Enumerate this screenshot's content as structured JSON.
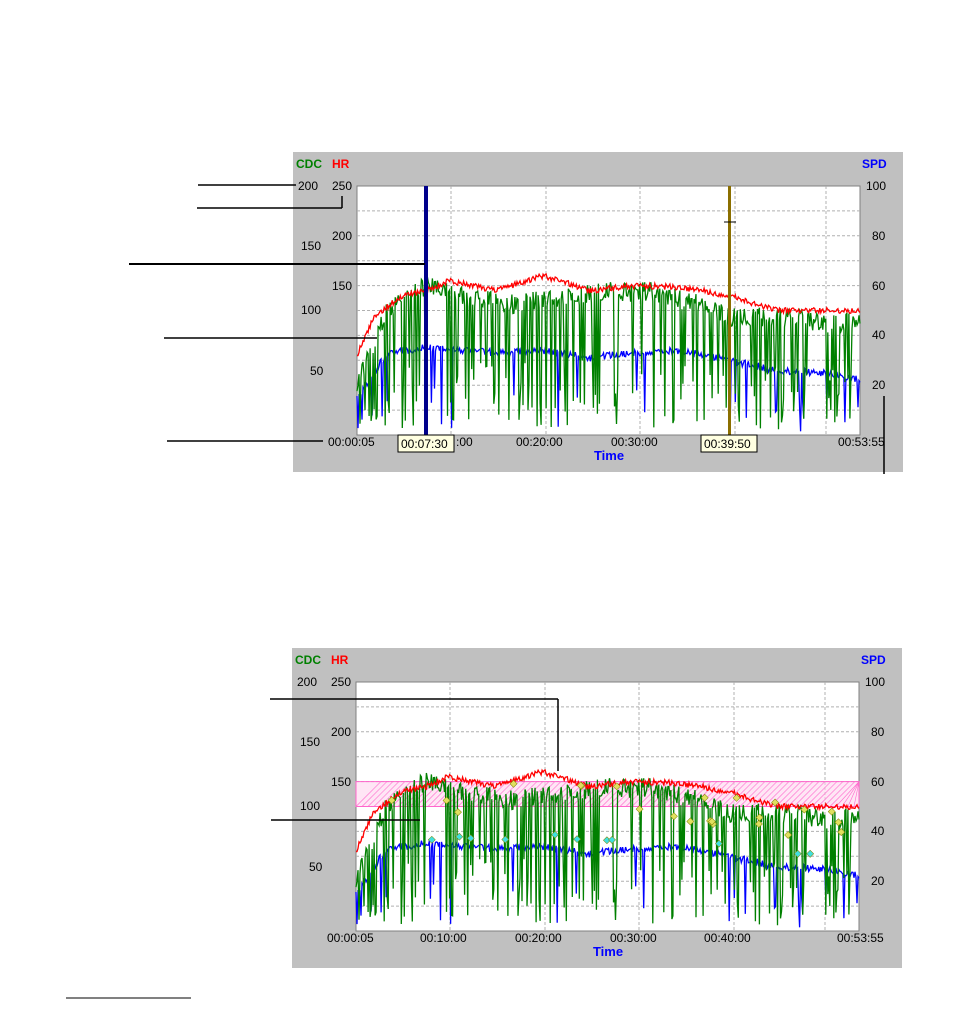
{
  "colors": {
    "cdc": "#008000",
    "hr": "#ff0000",
    "spd": "#0000ff",
    "panel": "#c0c0c0",
    "cursor1": "#00008b",
    "cursor2": "#8b6f00",
    "band": "#ff66cc",
    "marker": "#e0e060"
  },
  "chart_data": [
    {
      "type": "line",
      "title": "",
      "xlabel": "Time",
      "y_left_labels": [
        "CDC",
        "HR"
      ],
      "y_right_label": "SPD",
      "x_range_seconds": [
        5,
        3235
      ],
      "x_ticks": [
        "00:00:05",
        "00:20:00",
        "00:30:00",
        "00:53:55"
      ],
      "y_left_cdc_ticks": [
        "200",
        "150",
        "100",
        "50"
      ],
      "y_left_hr_ticks": [
        "250",
        "200",
        "150"
      ],
      "y_right_ticks": [
        "100",
        "80",
        "60",
        "40",
        "20"
      ],
      "cursors": [
        {
          "label": "00:07:30",
          "time_s": 450
        },
        {
          "label": "00:39:50",
          "time_s": 2390
        }
      ],
      "partial_tick": ":00",
      "series": [
        {
          "name": "HR",
          "axis": "HR",
          "points": [
            [
              5,
              80
            ],
            [
              120,
              120
            ],
            [
              300,
              140
            ],
            [
              450,
              145
            ],
            [
              600,
              155
            ],
            [
              900,
              145
            ],
            [
              1200,
              160
            ],
            [
              1500,
              145
            ],
            [
              1800,
              150
            ],
            [
              2100,
              148
            ],
            [
              2390,
              140
            ],
            [
              2700,
              125
            ],
            [
              3000,
              125
            ],
            [
              3235,
              125
            ]
          ]
        },
        {
          "name": "CDC",
          "axis": "CDC",
          "points": [
            [
              5,
              40
            ],
            [
              200,
              100
            ],
            [
              450,
              120
            ],
            [
              700,
              110
            ],
            [
              1000,
              105
            ],
            [
              1300,
              110
            ],
            [
              1600,
              115
            ],
            [
              1900,
              115
            ],
            [
              2200,
              105
            ],
            [
              2390,
              95
            ],
            [
              2700,
              95
            ],
            [
              3000,
              90
            ],
            [
              3235,
              90
            ]
          ]
        },
        {
          "name": "SPD",
          "axis": "SPD",
          "points": [
            [
              5,
              15
            ],
            [
              200,
              33
            ],
            [
              450,
              35
            ],
            [
              700,
              34
            ],
            [
              900,
              33
            ],
            [
              1200,
              34
            ],
            [
              1500,
              31
            ],
            [
              1800,
              33
            ],
            [
              2100,
              34
            ],
            [
              2390,
              30
            ],
            [
              2700,
              26
            ],
            [
              3000,
              25
            ],
            [
              3235,
              22
            ]
          ]
        }
      ]
    },
    {
      "type": "line",
      "title": "",
      "xlabel": "Time",
      "y_left_labels": [
        "CDC",
        "HR"
      ],
      "y_right_label": "SPD",
      "x_range_seconds": [
        5,
        3235
      ],
      "x_ticks": [
        "00:00:05",
        "00:10:00",
        "00:20:00",
        "00:30:00",
        "00:40:00",
        "00:53:55"
      ],
      "y_left_cdc_ticks": [
        "200",
        "150",
        "100",
        "50"
      ],
      "y_left_hr_ticks": [
        "250",
        "200",
        "150"
      ],
      "y_right_ticks": [
        "100",
        "80",
        "60",
        "40",
        "20"
      ],
      "band_cdc": [
        100,
        120
      ],
      "series": [
        {
          "name": "HR",
          "axis": "HR",
          "points": [
            [
              5,
              80
            ],
            [
              120,
              120
            ],
            [
              300,
              140
            ],
            [
              450,
              145
            ],
            [
              600,
              155
            ],
            [
              900,
              145
            ],
            [
              1200,
              160
            ],
            [
              1500,
              145
            ],
            [
              1800,
              150
            ],
            [
              2100,
              148
            ],
            [
              2390,
              140
            ],
            [
              2700,
              125
            ],
            [
              3000,
              125
            ],
            [
              3235,
              125
            ]
          ]
        },
        {
          "name": "CDC",
          "axis": "CDC",
          "points": [
            [
              5,
              40
            ],
            [
              200,
              100
            ],
            [
              450,
              120
            ],
            [
              700,
              110
            ],
            [
              1000,
              105
            ],
            [
              1300,
              110
            ],
            [
              1600,
              115
            ],
            [
              1900,
              115
            ],
            [
              2200,
              105
            ],
            [
              2390,
              95
            ],
            [
              2700,
              95
            ],
            [
              3000,
              90
            ],
            [
              3235,
              90
            ]
          ]
        },
        {
          "name": "SPD",
          "axis": "SPD",
          "points": [
            [
              5,
              15
            ],
            [
              200,
              33
            ],
            [
              450,
              35
            ],
            [
              700,
              34
            ],
            [
              900,
              33
            ],
            [
              1200,
              34
            ],
            [
              1500,
              31
            ],
            [
              1800,
              33
            ],
            [
              2100,
              34
            ],
            [
              2390,
              30
            ],
            [
              2700,
              26
            ],
            [
              3000,
              25
            ],
            [
              3235,
              22
            ]
          ]
        }
      ]
    }
  ]
}
